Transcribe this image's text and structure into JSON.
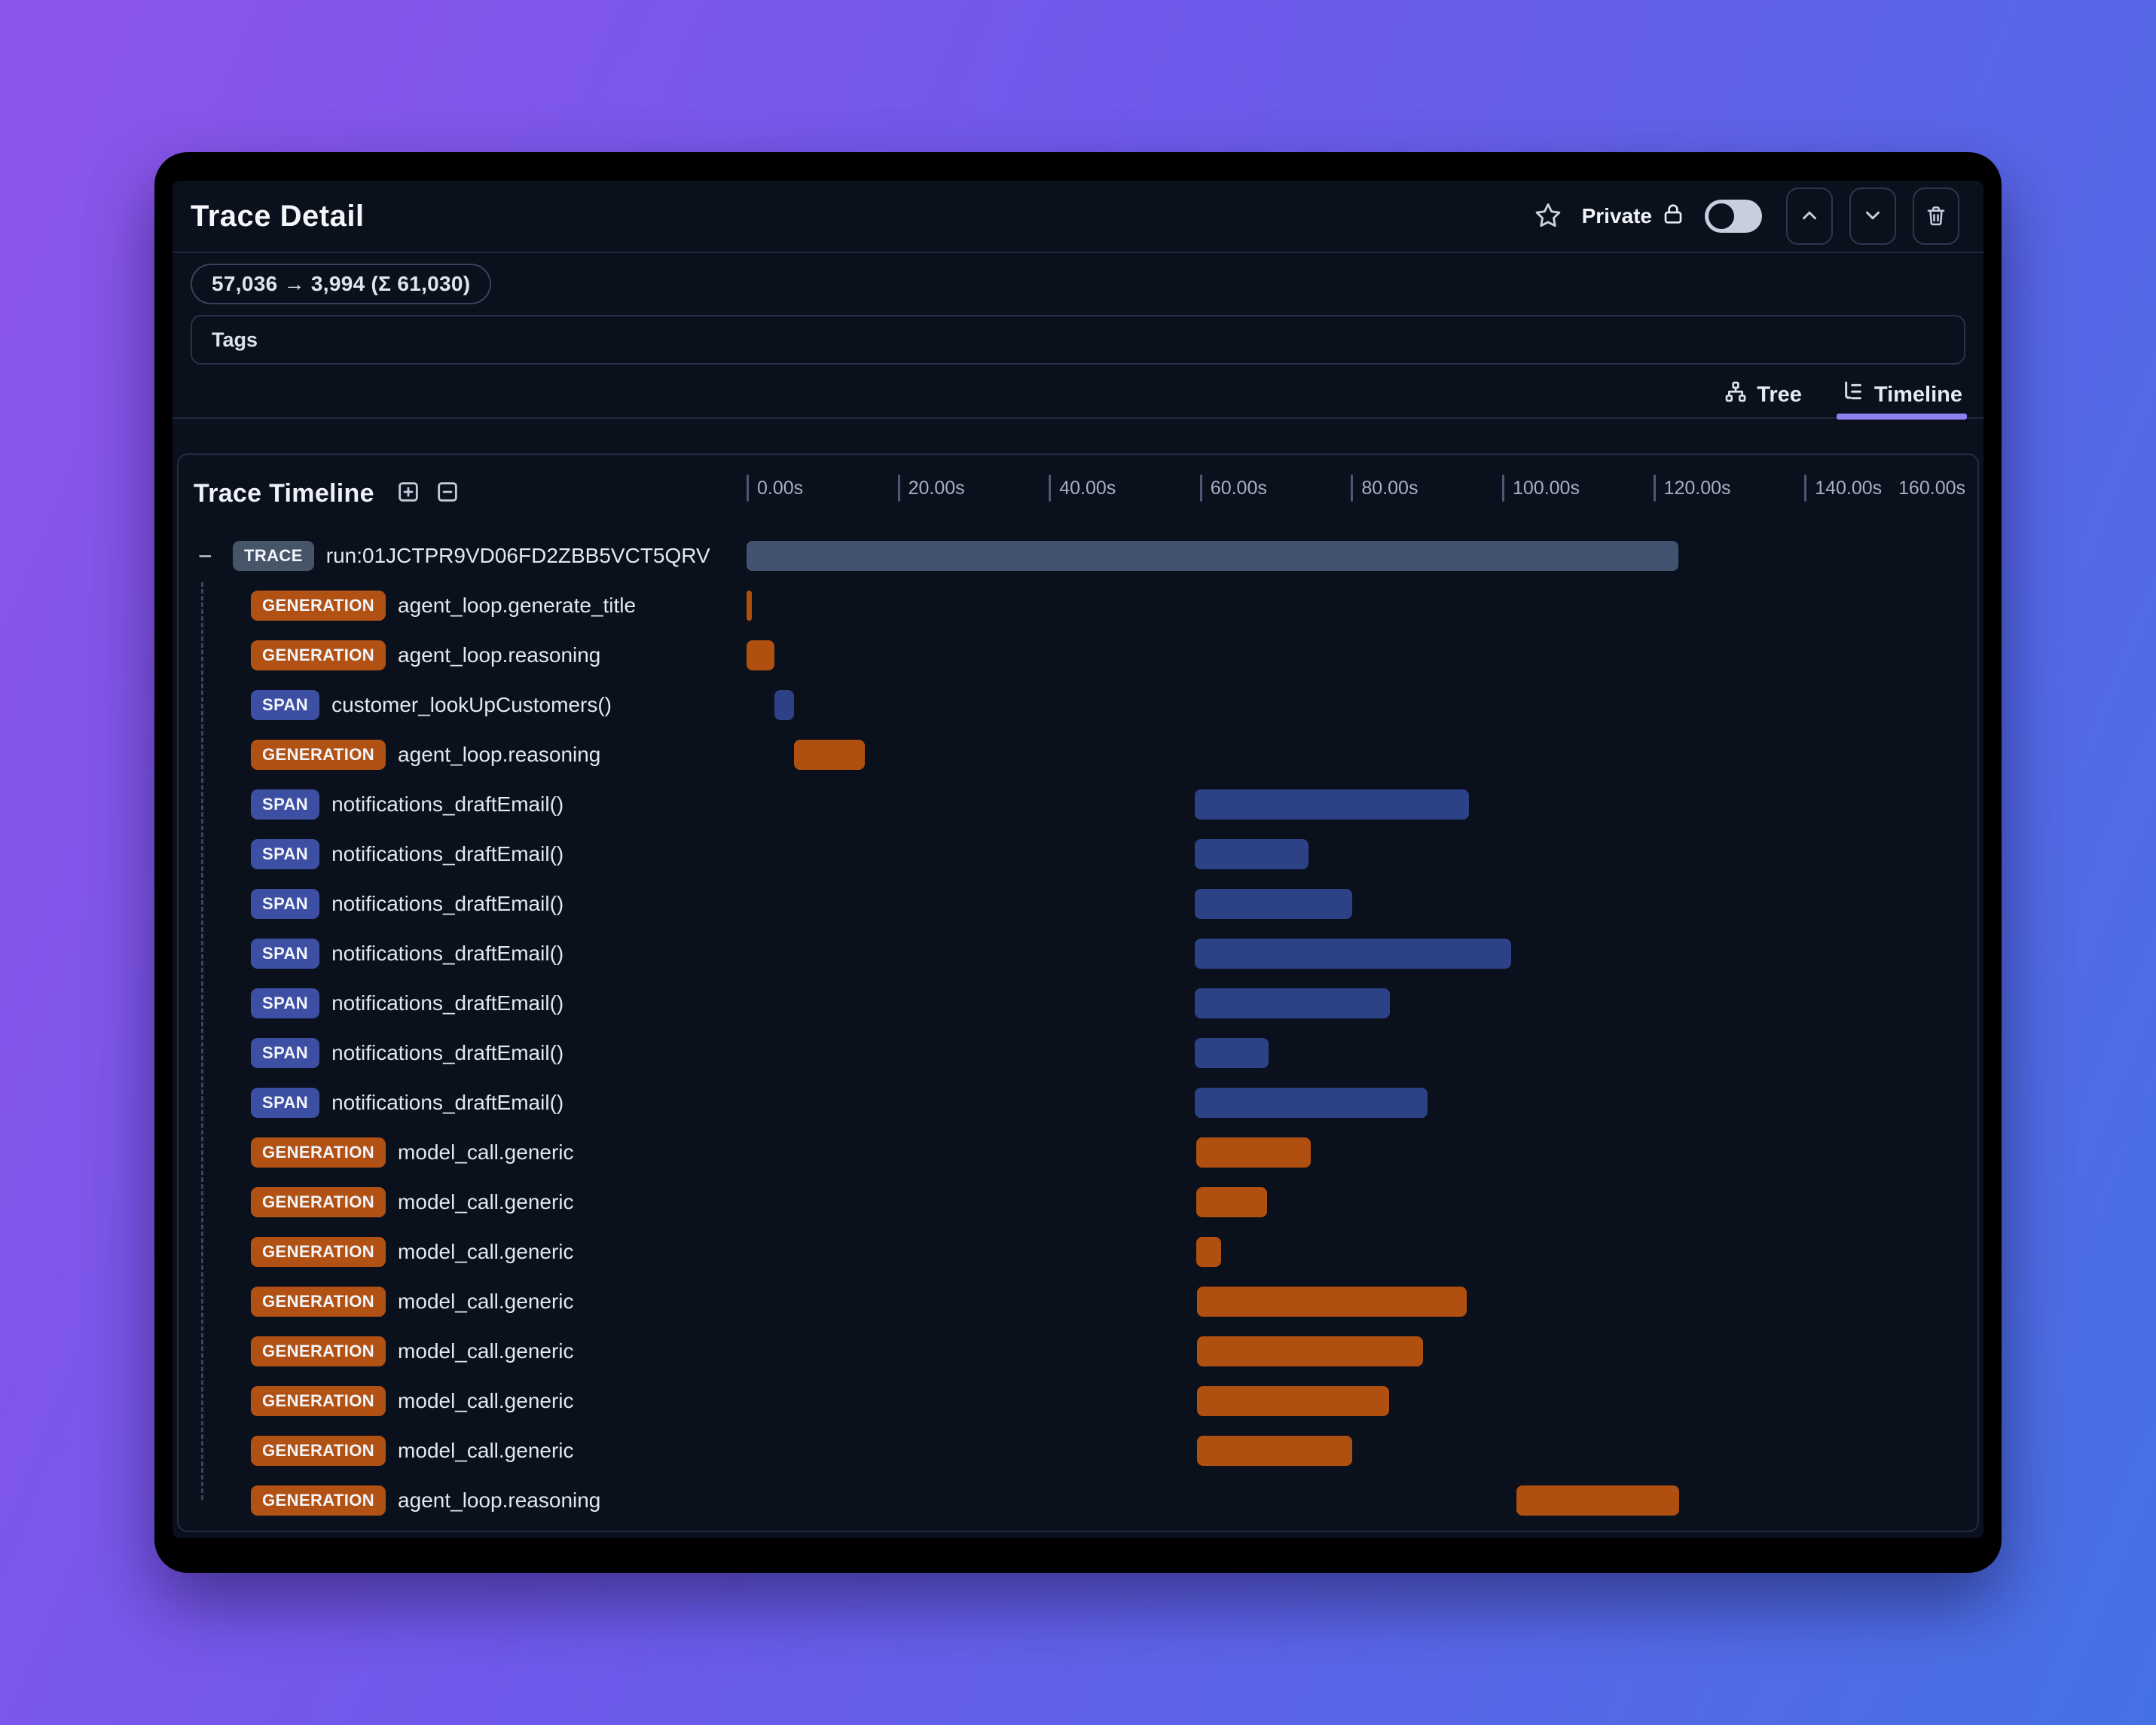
{
  "header": {
    "title": "Trace Detail",
    "privacy_label": "Private"
  },
  "token_usage": "57,036 → 3,994 (Σ 61,030)",
  "tags_label": "Tags",
  "view_tabs": [
    {
      "label": "Tree",
      "active": false
    },
    {
      "label": "Timeline",
      "active": true
    }
  ],
  "timeline_panel": {
    "title": "Trace Timeline"
  },
  "colors": {
    "trace_badge": "#475569",
    "trace_bar": "#41536f",
    "generation_badge": "#b15114",
    "generation_bar": "#b05010",
    "span_badge": "#3c4fa3",
    "span_bar": "#2d4286",
    "tab_active_underline": "#8f80f0"
  },
  "chart_data": {
    "type": "gantt-timeline",
    "title": "Trace Timeline",
    "xlabel": "seconds",
    "x_range_seconds": [
      0,
      160
    ],
    "ticks": [
      {
        "value": 0,
        "label": "0.00s"
      },
      {
        "value": 20,
        "label": "20.00s"
      },
      {
        "value": 40,
        "label": "40.00s"
      },
      {
        "value": 60,
        "label": "60.00s"
      },
      {
        "value": 80,
        "label": "80.00s"
      },
      {
        "value": 100,
        "label": "100.00s"
      },
      {
        "value": 120,
        "label": "120.00s"
      },
      {
        "value": 140,
        "label": "140.00s"
      }
    ],
    "end_label": "160.00s",
    "rows": [
      {
        "type": "TRACE",
        "name": "run:01JCTPR9VD06FD2ZBB5VCT5QRV",
        "start": 0,
        "end": 123.3,
        "collapsible": true
      },
      {
        "type": "GENERATION",
        "name": "agent_loop.generate_title",
        "start": 0,
        "end": 0.7
      },
      {
        "type": "GENERATION",
        "name": "agent_loop.reasoning",
        "start": 0,
        "end": 3.7
      },
      {
        "type": "SPAN",
        "name": "customer_lookUpCustomers()",
        "start": 3.7,
        "end": 6.3
      },
      {
        "type": "GENERATION",
        "name": "agent_loop.reasoning",
        "start": 6.3,
        "end": 15.7
      },
      {
        "type": "SPAN",
        "name": "notifications_draftEmail()",
        "start": 59.3,
        "end": 95.6
      },
      {
        "type": "SPAN",
        "name": "notifications_draftEmail()",
        "start": 59.3,
        "end": 74.4
      },
      {
        "type": "SPAN",
        "name": "notifications_draftEmail()",
        "start": 59.3,
        "end": 80.2
      },
      {
        "type": "SPAN",
        "name": "notifications_draftEmail()",
        "start": 59.3,
        "end": 101.2
      },
      {
        "type": "SPAN",
        "name": "notifications_draftEmail()",
        "start": 59.3,
        "end": 85.1
      },
      {
        "type": "SPAN",
        "name": "notifications_draftEmail()",
        "start": 59.3,
        "end": 69.1
      },
      {
        "type": "SPAN",
        "name": "notifications_draftEmail()",
        "start": 59.3,
        "end": 90.1
      },
      {
        "type": "GENERATION",
        "name": "model_call.generic",
        "start": 59.5,
        "end": 74.7
      },
      {
        "type": "GENERATION",
        "name": "model_call.generic",
        "start": 59.5,
        "end": 68.9
      },
      {
        "type": "GENERATION",
        "name": "model_call.generic",
        "start": 59.5,
        "end": 62.8
      },
      {
        "type": "GENERATION",
        "name": "model_call.generic",
        "start": 59.6,
        "end": 95.3
      },
      {
        "type": "GENERATION",
        "name": "model_call.generic",
        "start": 59.6,
        "end": 89.5
      },
      {
        "type": "GENERATION",
        "name": "model_call.generic",
        "start": 59.6,
        "end": 85.0
      },
      {
        "type": "GENERATION",
        "name": "model_call.generic",
        "start": 59.6,
        "end": 80.2
      },
      {
        "type": "GENERATION",
        "name": "agent_loop.reasoning",
        "start": 101.9,
        "end": 123.4
      }
    ]
  }
}
